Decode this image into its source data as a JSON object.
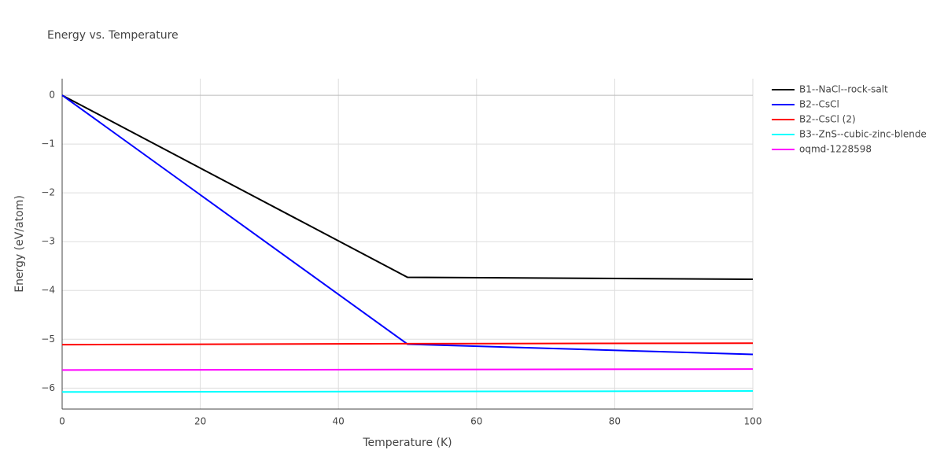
{
  "chart_data": {
    "type": "line",
    "title": "Energy vs. Temperature",
    "xlabel": "Temperature (K)",
    "ylabel": "Energy (eV/atom)",
    "x": [
      0,
      50,
      100
    ],
    "series": [
      {
        "name": "B1--NaCl--rock-salt",
        "color": "#000000",
        "values": [
          0,
          -3.73,
          -3.77
        ]
      },
      {
        "name": "B2--CsCl",
        "color": "#0000ff",
        "values": [
          0,
          -5.1,
          -5.31
        ]
      },
      {
        "name": "B2--CsCl (2)",
        "color": "#ff0000",
        "values": [
          -5.11,
          -5.09,
          -5.08
        ]
      },
      {
        "name": "B3--ZnS--cubic-zinc-blende",
        "color": "#00ffff",
        "values": [
          -6.08,
          -6.07,
          -6.06
        ]
      },
      {
        "name": "oqmd-1228598",
        "color": "#ff00ff",
        "values": [
          -5.63,
          -5.62,
          -5.61
        ]
      }
    ],
    "xlim": [
      0,
      100
    ],
    "xticks": [
      0,
      20,
      40,
      60,
      80,
      100
    ],
    "ylim": [
      -6.43,
      0.34
    ],
    "yticks": [
      0,
      {
        "value": -1,
        "label": "−1"
      },
      {
        "value": -2,
        "label": "−2"
      },
      {
        "value": -3,
        "label": "−3"
      },
      {
        "value": -4,
        "label": "−4"
      },
      {
        "value": -5,
        "label": "−5"
      },
      {
        "value": -6,
        "label": "−6"
      }
    ],
    "grid": true,
    "legend": "right"
  }
}
